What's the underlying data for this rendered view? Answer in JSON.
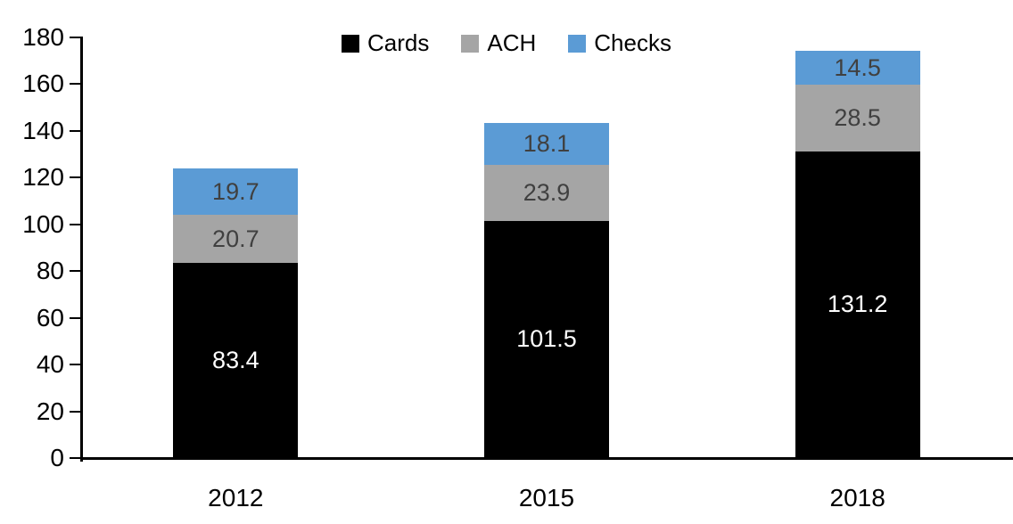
{
  "chart_data": {
    "type": "bar",
    "stacked": true,
    "title": "",
    "categories": [
      "2012",
      "2015",
      "2018"
    ],
    "series": [
      {
        "name": "Cards",
        "color": "#000000",
        "label_color": "#FFFFFF",
        "values": [
          83.4,
          101.5,
          131.2
        ],
        "labels": [
          "83.4",
          "101.5",
          "131.2"
        ]
      },
      {
        "name": "ACH",
        "color": "#A5A5A5",
        "label_color": "#404040",
        "values": [
          20.7,
          23.9,
          28.5
        ],
        "labels": [
          "20.7",
          "23.9",
          "28.5"
        ]
      },
      {
        "name": "Checks",
        "color": "#5B9BD5",
        "label_color": "#404040",
        "values": [
          19.7,
          18.1,
          14.5
        ],
        "labels": [
          "19.7",
          "18.1",
          "14.5"
        ]
      }
    ],
    "y_axis": {
      "min": 0,
      "max": 180,
      "step": 20,
      "tick_labels": [
        "0",
        "20",
        "40",
        "60",
        "80",
        "100",
        "120",
        "140",
        "160",
        "180"
      ]
    },
    "x_axis": {
      "tick_labels": [
        "2012",
        "2015",
        "2018"
      ]
    },
    "legend": {
      "position": "top",
      "entries": [
        "Cards",
        "ACH",
        "Checks"
      ]
    },
    "grid": false,
    "background": "#FFFFFF",
    "axis_color": "#000000"
  }
}
